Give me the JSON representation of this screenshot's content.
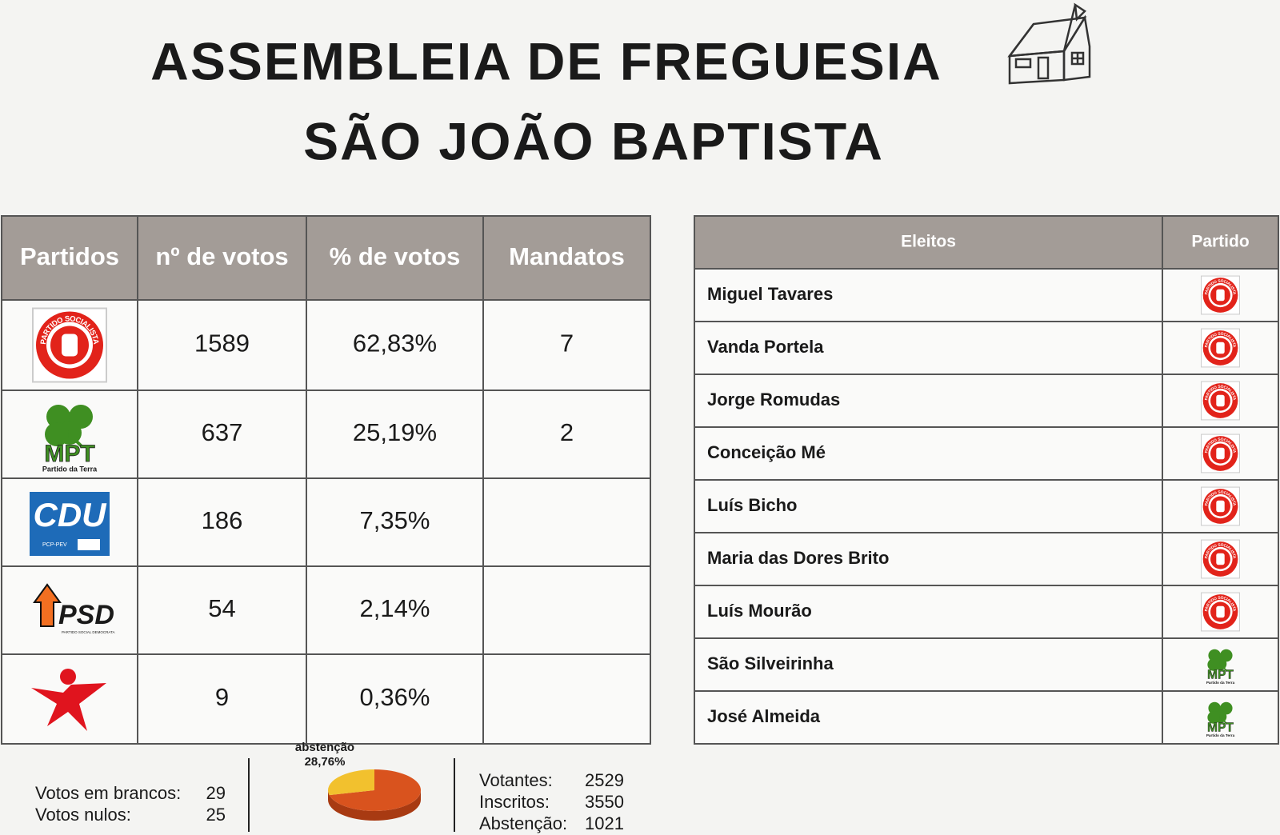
{
  "header": {
    "title": [
      "ASSEMBLEIA DE FREGUESIA",
      "SÃO JOÃO BAPTISTA"
    ]
  },
  "results": {
    "columns": [
      "Partidos",
      "nº de votos",
      "% de votos",
      "Mandatos"
    ],
    "rows": [
      {
        "logo": [
          "PARTIDO SOCIALISTA"
        ],
        "color": "#e2231a",
        "votes": 1589,
        "percent": "62,83%",
        "mandates": 7
      },
      {
        "logo": [
          "MPT",
          "Partido da Terra"
        ],
        "color": "#3f8f22",
        "votes": 637,
        "percent": "25,19%",
        "mandates": 2
      },
      {
        "logo": [
          "CDU",
          "PCP-PEV"
        ],
        "color": "#1e6bb8",
        "votes": 186,
        "percent": "7,35%"
      },
      {
        "logo": [
          "PSD",
          "PARTIDO SOCIAL DEMOCRATA"
        ],
        "color": "#f26f21",
        "votes": 54,
        "percent": "2,14%"
      },
      {
        "logo": [],
        "color": "#e0141e",
        "votes": 9,
        "percent": "0,36%"
      }
    ]
  },
  "elected": {
    "columns": [
      "Eleitos",
      "Partido"
    ],
    "rows": [
      {
        "name": "Miguel Tavares",
        "logo": [
          "PARTIDO SOCIALISTA"
        ],
        "color": "#e2231a"
      },
      {
        "name": "Vanda Portela",
        "logo": [
          "PARTIDO SOCIALISTA"
        ],
        "color": "#e2231a"
      },
      {
        "name": "Jorge Romudas",
        "logo": [
          "PARTIDO SOCIALISTA"
        ],
        "color": "#e2231a"
      },
      {
        "name": "Conceição Mé",
        "logo": [
          "PARTIDO SOCIALISTA"
        ],
        "color": "#e2231a"
      },
      {
        "name": "Luís Bicho",
        "logo": [
          "PARTIDO SOCIALISTA"
        ],
        "color": "#e2231a"
      },
      {
        "name": "Maria das Dores Brito",
        "logo": [
          "PARTIDO SOCIALISTA"
        ],
        "color": "#e2231a"
      },
      {
        "name": "Luís Mourão",
        "logo": [
          "PARTIDO SOCIALISTA"
        ],
        "color": "#e2231a"
      },
      {
        "name": "São Silveirinha",
        "logo": [
          "MPT",
          "Partido da Terra"
        ],
        "color": "#3f8f22"
      },
      {
        "name": "José Almeida",
        "logo": [
          "MPT",
          "Partido da Terra"
        ],
        "color": "#3f8f22"
      }
    ]
  },
  "pie": {
    "label": "abstenção",
    "value": 28.76,
    "value_label": "28,76%",
    "colors": [
      "#f2c12e",
      "#d9531e"
    ]
  },
  "summary_left": [
    {
      "label": "Votos em brancos:",
      "value": 29
    },
    {
      "label": "Votos nulos:",
      "value": 25
    }
  ],
  "summary_right": [
    {
      "label": "Votantes:",
      "value": 2529
    },
    {
      "label": "Inscritos:",
      "value": 3550
    },
    {
      "label": "Abstenção:",
      "value": 1021
    }
  ]
}
